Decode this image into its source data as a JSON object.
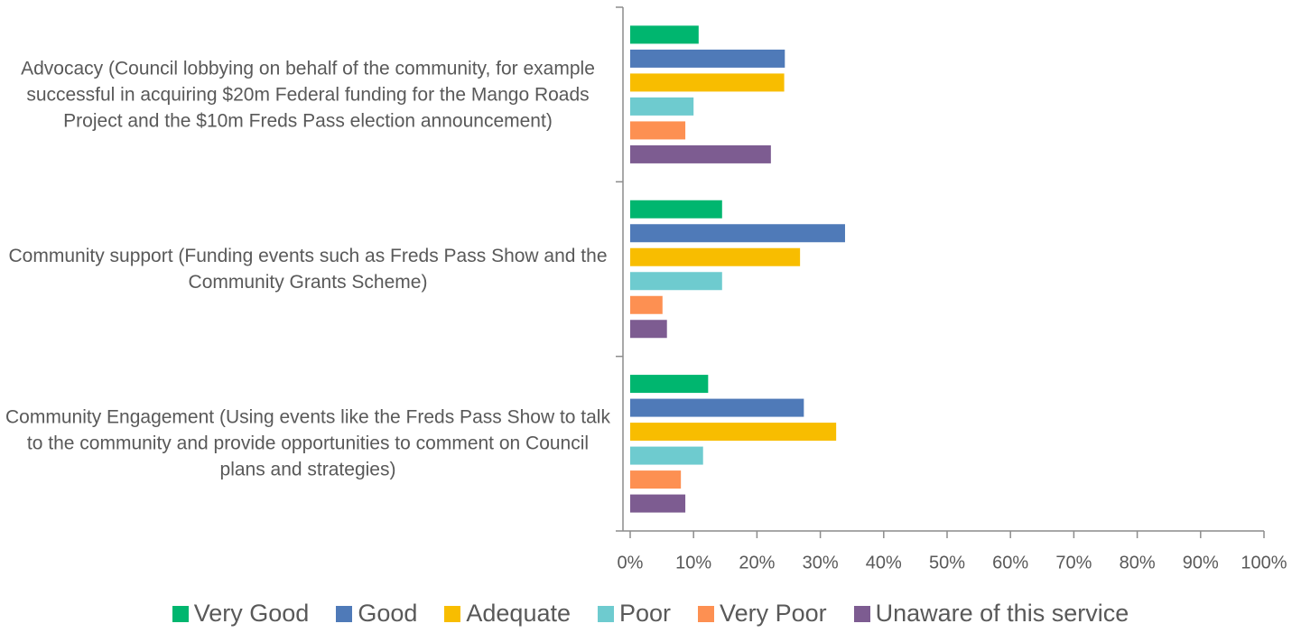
{
  "chart_data": {
    "type": "bar",
    "orientation": "horizontal",
    "categories": [
      "Advocacy (Council lobbying on behalf of the community, for example successful in acquiring $20m Federal funding for the Mango Roads Project and the $10m Freds Pass election announcement)",
      "Community support (Funding events such as Freds Pass Show and the Community Grants Scheme)",
      "Community Engagement (Using events like the Freds Pass Show to talk to the community and provide opportunities to comment on Council plans and strategies)"
    ],
    "series": [
      {
        "name": "Very Good",
        "color": "#00b66f",
        "values": [
          10.8,
          14.5,
          12.3
        ]
      },
      {
        "name": "Good",
        "color": "#4f7ab8",
        "values": [
          24.4,
          33.9,
          27.4
        ]
      },
      {
        "name": "Adequate",
        "color": "#f8bd00",
        "values": [
          24.3,
          26.8,
          32.5
        ]
      },
      {
        "name": "Poor",
        "color": "#6ecbcf",
        "values": [
          10.0,
          14.5,
          11.5
        ]
      },
      {
        "name": "Very Poor",
        "color": "#fd9052",
        "values": [
          8.7,
          5.1,
          8.0
        ]
      },
      {
        "name": "Unaware of this service",
        "color": "#7d5c91",
        "values": [
          22.2,
          5.8,
          8.7
        ]
      }
    ],
    "xlim": [
      0,
      100
    ],
    "xticks": [
      {
        "value": 0,
        "label": "0%"
      },
      {
        "value": 10,
        "label": "10%"
      },
      {
        "value": 20,
        "label": "20%"
      },
      {
        "value": 30,
        "label": "30%"
      },
      {
        "value": 40,
        "label": "40%"
      },
      {
        "value": 50,
        "label": "50%"
      },
      {
        "value": 60,
        "label": "60%"
      },
      {
        "value": 70,
        "label": "70%"
      },
      {
        "value": 80,
        "label": "80%"
      },
      {
        "value": 90,
        "label": "90%"
      },
      {
        "value": 100,
        "label": "100%"
      }
    ],
    "legend": "bottom"
  }
}
